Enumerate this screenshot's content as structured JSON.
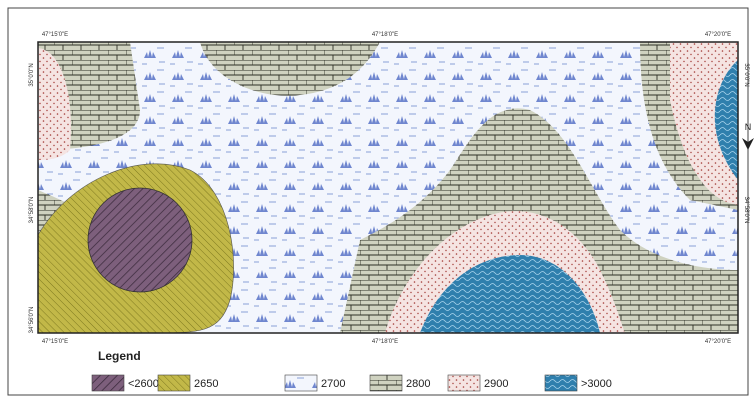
{
  "coords": {
    "top": [
      "47°15'0\"E",
      "47°18'0\"E",
      "47°20'0\"E"
    ],
    "bottom": [
      "47°15'0\"E",
      "47°18'0\"E",
      "47°20'0\"E"
    ],
    "left": [
      "35°0'0\"N",
      "34°58'0\"N",
      "34°56'0\"N"
    ],
    "right": [
      "35°0'0\"N",
      "34°58'0\"N"
    ]
  },
  "north": "N",
  "legend": {
    "title": "Legend",
    "items": [
      "<2600",
      "2650",
      "2700",
      "2800",
      "2900",
      ">3000"
    ]
  }
}
